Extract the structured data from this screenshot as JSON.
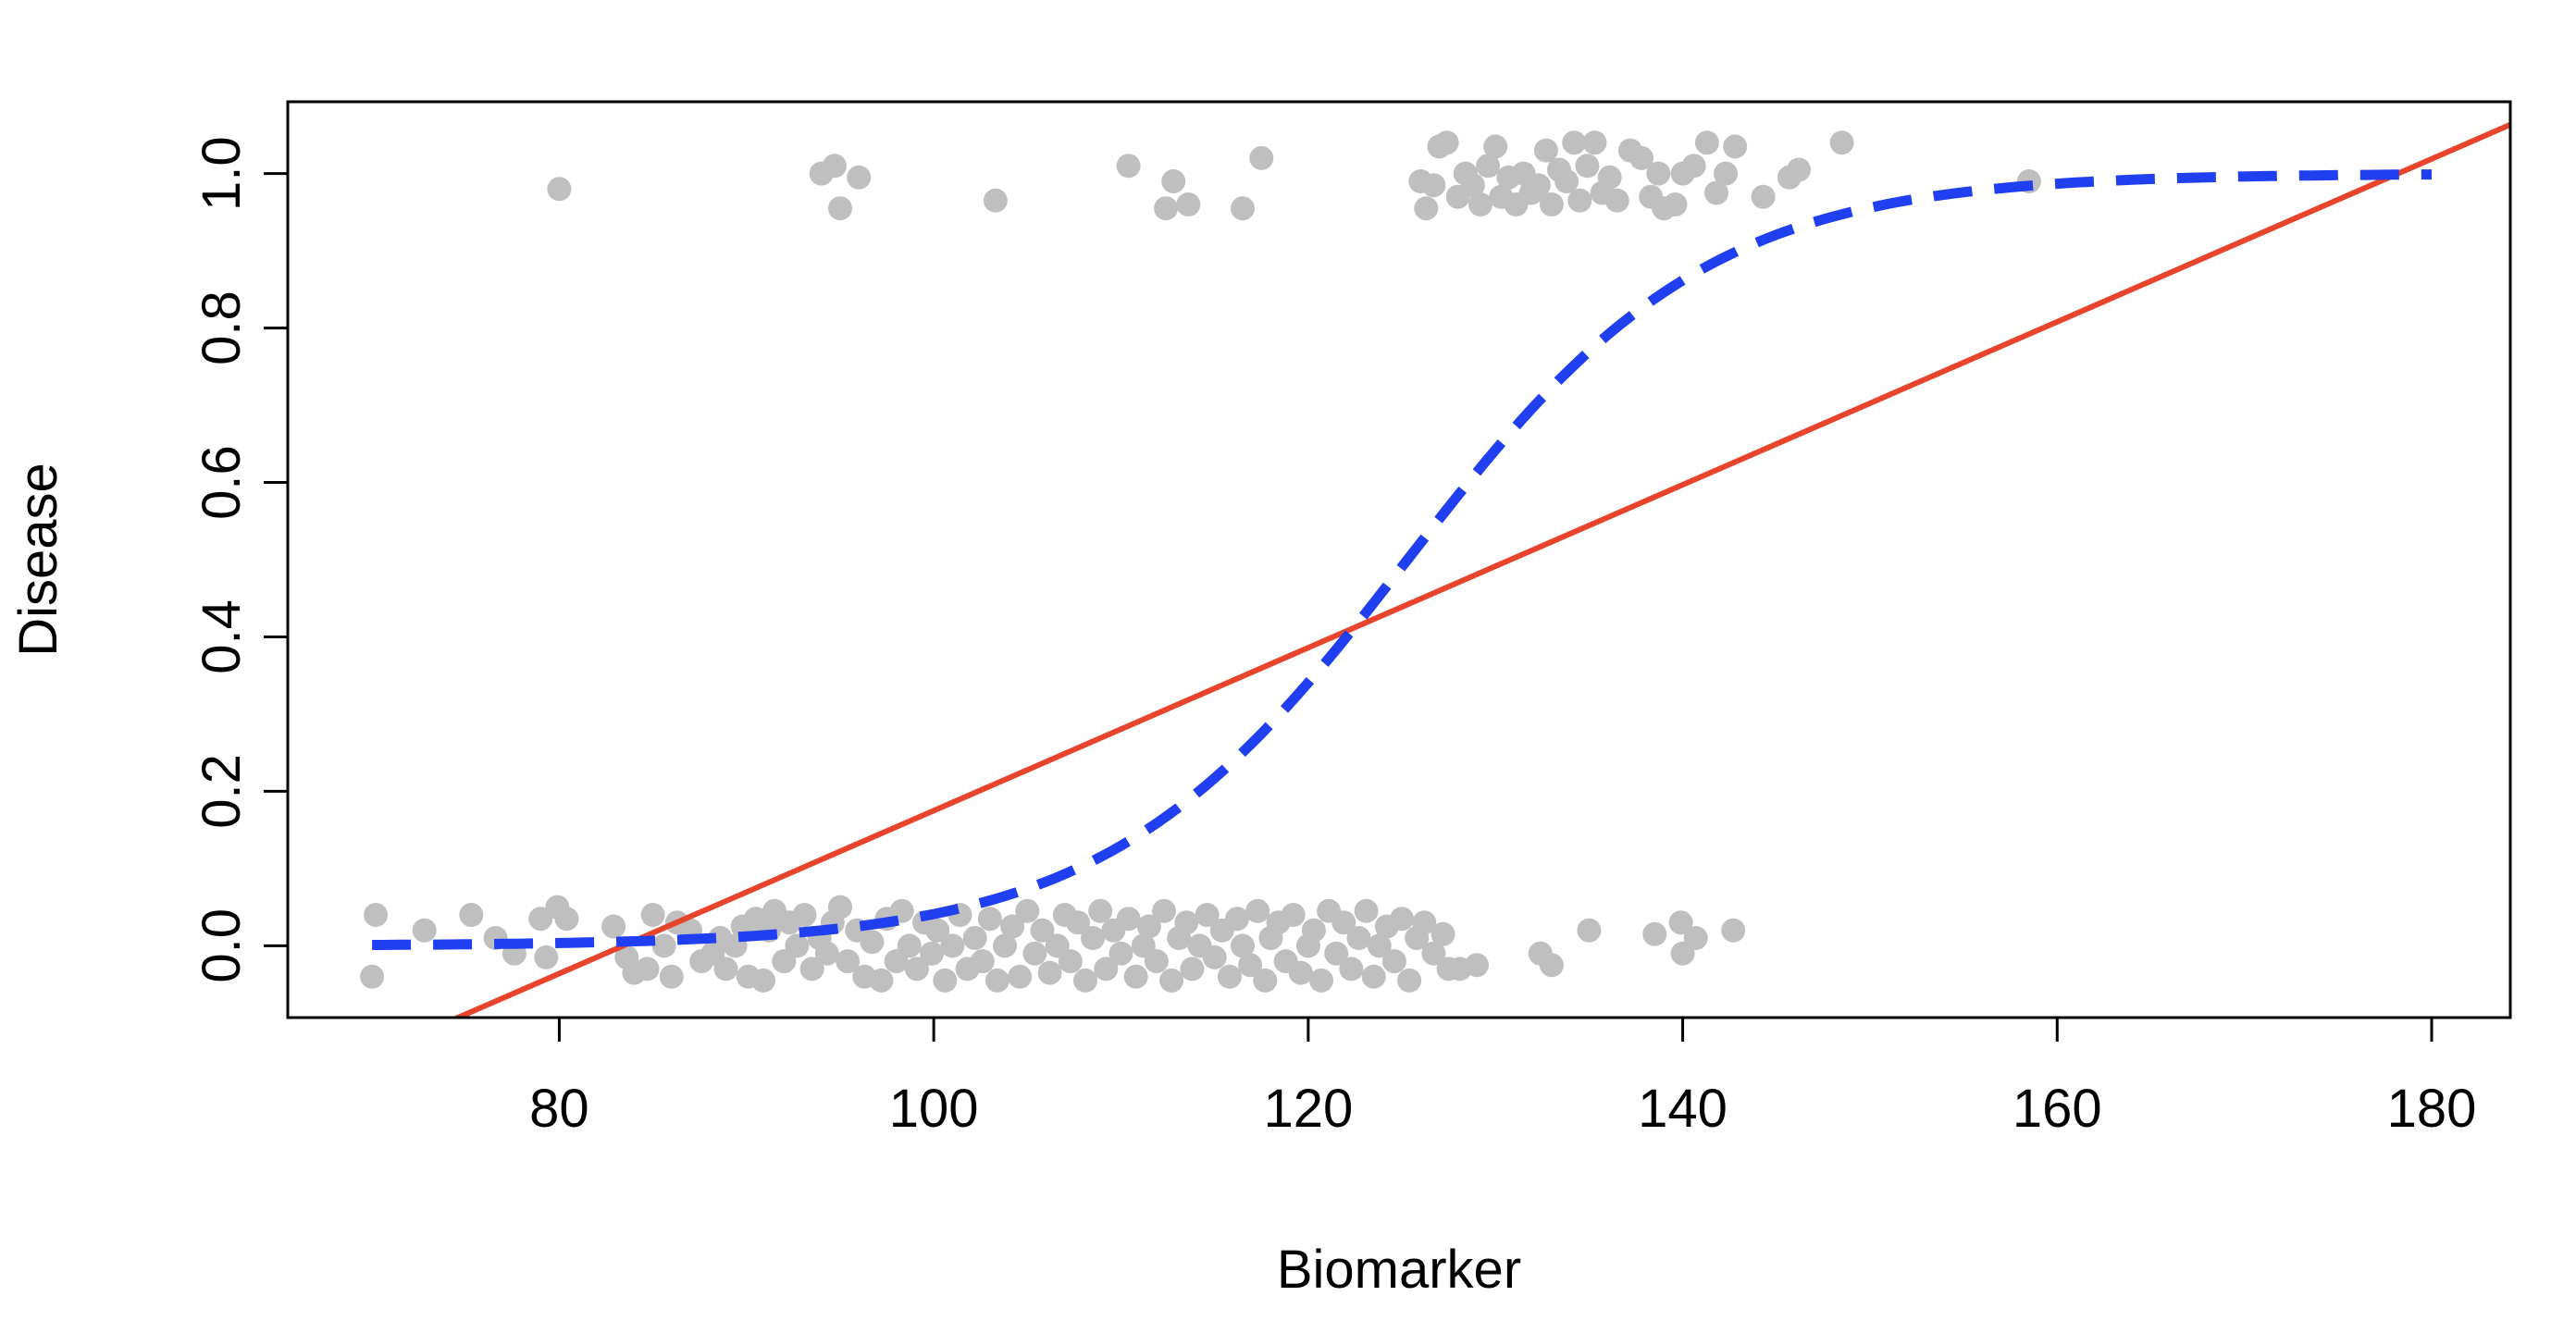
{
  "chart_data": {
    "type": "scatter",
    "title": "",
    "xlabel": "Biomarker",
    "ylabel": "Disease",
    "xlim": [
      65.5,
      184.2
    ],
    "ylim": [
      -0.093,
      1.093
    ],
    "x_ticks": [
      80,
      100,
      120,
      140,
      160,
      180
    ],
    "x_tick_labels": [
      "80",
      "100",
      "120",
      "140",
      "160",
      "180"
    ],
    "y_ticks": [
      0.0,
      0.2,
      0.4,
      0.6,
      0.8,
      1.0
    ],
    "y_tick_labels": [
      "0.0",
      "0.2",
      "0.4",
      "0.6",
      "0.8",
      "1.0"
    ],
    "grid": false,
    "legend": "none",
    "colors": {
      "points": "#bfbfbf",
      "linear_fit": "#e8442c",
      "logistic_fit": "#1f3ff0",
      "axes": "#000000"
    },
    "series": [
      {
        "kind": "points",
        "points": [
          [
            70.0,
            -0.04
          ],
          [
            70.2,
            0.04
          ],
          [
            72.8,
            0.02
          ],
          [
            75.3,
            0.04
          ],
          [
            76.6,
            0.01
          ],
          [
            77.6,
            -0.01
          ],
          [
            79.0,
            0.035
          ],
          [
            79.3,
            -0.015
          ],
          [
            79.9,
            0.05
          ],
          [
            80.4,
            0.035
          ],
          [
            82.9,
            0.025
          ],
          [
            83.6,
            -0.015
          ],
          [
            84.0,
            -0.035
          ],
          [
            84.7,
            -0.03
          ],
          [
            85.0,
            0.04
          ],
          [
            85.6,
            0.0
          ],
          [
            86.0,
            -0.04
          ],
          [
            86.3,
            0.03
          ],
          [
            87.0,
            0.02
          ],
          [
            87.6,
            -0.02
          ],
          [
            88.2,
            -0.01
          ],
          [
            88.6,
            0.01
          ],
          [
            88.9,
            -0.03
          ],
          [
            89.4,
            0.0
          ],
          [
            89.8,
            0.025
          ],
          [
            90.1,
            -0.04
          ],
          [
            90.5,
            0.035
          ],
          [
            90.9,
            -0.045
          ],
          [
            91.2,
            0.02
          ],
          [
            91.5,
            0.045
          ],
          [
            92.0,
            -0.02
          ],
          [
            92.3,
            0.03
          ],
          [
            92.7,
            0.0
          ],
          [
            93.1,
            0.04
          ],
          [
            93.5,
            -0.03
          ],
          [
            93.9,
            0.01
          ],
          [
            94.3,
            -0.01
          ],
          [
            94.6,
            0.03
          ],
          [
            95.0,
            0.05
          ],
          [
            95.4,
            -0.02
          ],
          [
            95.9,
            0.02
          ],
          [
            96.3,
            -0.04
          ],
          [
            96.7,
            0.005
          ],
          [
            97.2,
            -0.045
          ],
          [
            97.5,
            0.035
          ],
          [
            98.0,
            -0.02
          ],
          [
            98.3,
            0.045
          ],
          [
            98.7,
            0.0
          ],
          [
            99.1,
            -0.03
          ],
          [
            99.5,
            0.03
          ],
          [
            99.9,
            -0.01
          ],
          [
            100.2,
            0.02
          ],
          [
            100.6,
            -0.045
          ],
          [
            101.0,
            0.0
          ],
          [
            101.4,
            0.04
          ],
          [
            101.8,
            -0.03
          ],
          [
            102.2,
            0.01
          ],
          [
            102.6,
            -0.02
          ],
          [
            103.0,
            0.035
          ],
          [
            103.4,
            -0.045
          ],
          [
            103.8,
            0.0
          ],
          [
            104.2,
            0.025
          ],
          [
            104.6,
            -0.04
          ],
          [
            105.0,
            0.045
          ],
          [
            105.4,
            -0.01
          ],
          [
            105.8,
            0.02
          ],
          [
            106.2,
            -0.035
          ],
          [
            106.6,
            0.0
          ],
          [
            107.0,
            0.04
          ],
          [
            107.3,
            -0.02
          ],
          [
            107.7,
            0.03
          ],
          [
            108.1,
            -0.045
          ],
          [
            108.5,
            0.01
          ],
          [
            108.9,
            0.045
          ],
          [
            109.2,
            -0.03
          ],
          [
            109.6,
            0.02
          ],
          [
            110.0,
            -0.01
          ],
          [
            110.4,
            0.035
          ],
          [
            110.8,
            -0.04
          ],
          [
            111.2,
            0.0
          ],
          [
            111.5,
            0.025
          ],
          [
            111.9,
            -0.02
          ],
          [
            112.3,
            0.045
          ],
          [
            112.7,
            -0.045
          ],
          [
            113.1,
            0.01
          ],
          [
            113.5,
            0.03
          ],
          [
            113.8,
            -0.03
          ],
          [
            114.2,
            0.0
          ],
          [
            114.6,
            0.04
          ],
          [
            115.0,
            -0.015
          ],
          [
            115.4,
            0.02
          ],
          [
            115.8,
            -0.04
          ],
          [
            116.2,
            0.035
          ],
          [
            116.5,
            0.0
          ],
          [
            116.9,
            -0.025
          ],
          [
            117.3,
            0.045
          ],
          [
            117.7,
            -0.045
          ],
          [
            118.0,
            0.01
          ],
          [
            118.4,
            0.03
          ],
          [
            118.8,
            -0.02
          ],
          [
            119.2,
            0.04
          ],
          [
            119.6,
            -0.035
          ],
          [
            120.0,
            0.0
          ],
          [
            120.3,
            0.02
          ],
          [
            120.7,
            -0.045
          ],
          [
            121.1,
            0.045
          ],
          [
            121.5,
            -0.01
          ],
          [
            121.9,
            0.03
          ],
          [
            122.3,
            -0.03
          ],
          [
            122.7,
            0.01
          ],
          [
            123.1,
            0.045
          ],
          [
            123.5,
            -0.04
          ],
          [
            123.8,
            0.0
          ],
          [
            124.2,
            0.025
          ],
          [
            124.6,
            -0.02
          ],
          [
            125.0,
            0.035
          ],
          [
            125.4,
            -0.045
          ],
          [
            125.8,
            0.01
          ],
          [
            126.2,
            0.03
          ],
          [
            126.7,
            -0.01
          ],
          [
            127.2,
            0.015
          ],
          [
            127.5,
            -0.03
          ],
          [
            128.1,
            -0.03
          ],
          [
            129.0,
            -0.025
          ],
          [
            132.4,
            -0.01
          ],
          [
            133.0,
            -0.025
          ],
          [
            135.0,
            0.02
          ],
          [
            138.5,
            0.015
          ],
          [
            139.9,
            0.03
          ],
          [
            140.0,
            -0.01
          ],
          [
            140.7,
            0.01
          ],
          [
            142.7,
            0.02
          ],
          [
            80.0,
            0.98
          ],
          [
            94.0,
            1.0
          ],
          [
            94.7,
            1.01
          ],
          [
            95.0,
            0.955
          ],
          [
            96.0,
            0.995
          ],
          [
            103.3,
            0.965
          ],
          [
            110.4,
            1.01
          ],
          [
            112.4,
            0.955
          ],
          [
            112.8,
            0.99
          ],
          [
            113.6,
            0.96
          ],
          [
            116.5,
            0.955
          ],
          [
            117.5,
            1.02
          ],
          [
            126.0,
            0.99
          ],
          [
            126.3,
            0.955
          ],
          [
            126.7,
            0.985
          ],
          [
            127.0,
            1.035
          ],
          [
            127.4,
            1.04
          ],
          [
            128.0,
            0.97
          ],
          [
            128.4,
            1.0
          ],
          [
            128.8,
            0.985
          ],
          [
            129.2,
            0.96
          ],
          [
            129.6,
            1.01
          ],
          [
            130.0,
            1.035
          ],
          [
            130.3,
            0.97
          ],
          [
            130.7,
            0.995
          ],
          [
            131.1,
            0.96
          ],
          [
            131.5,
            1.0
          ],
          [
            131.9,
            0.975
          ],
          [
            132.3,
            0.985
          ],
          [
            132.7,
            1.03
          ],
          [
            133.0,
            0.96
          ],
          [
            133.4,
            1.005
          ],
          [
            133.8,
            0.99
          ],
          [
            134.2,
            1.04
          ],
          [
            134.5,
            0.965
          ],
          [
            134.9,
            1.01
          ],
          [
            135.3,
            1.04
          ],
          [
            135.7,
            0.975
          ],
          [
            136.1,
            0.995
          ],
          [
            136.5,
            0.965
          ],
          [
            137.2,
            1.03
          ],
          [
            137.8,
            1.02
          ],
          [
            138.3,
            0.97
          ],
          [
            138.7,
            1.0
          ],
          [
            139.0,
            0.955
          ],
          [
            139.6,
            0.96
          ],
          [
            140.0,
            1.0
          ],
          [
            140.6,
            1.01
          ],
          [
            141.3,
            1.04
          ],
          [
            141.8,
            0.975
          ],
          [
            142.3,
            1.0
          ],
          [
            142.8,
            1.035
          ],
          [
            144.3,
            0.97
          ],
          [
            145.7,
            0.995
          ],
          [
            146.2,
            1.005
          ],
          [
            148.5,
            1.04
          ],
          [
            158.5,
            0.99
          ]
        ]
      },
      {
        "kind": "line",
        "style": "solid",
        "intercept": -0.88,
        "slope": 0.01055
      },
      {
        "kind": "line",
        "style": "dashed",
        "intercept": -15.6,
        "slope": 0.1245,
        "x_range": [
          70,
          180
        ]
      }
    ]
  }
}
